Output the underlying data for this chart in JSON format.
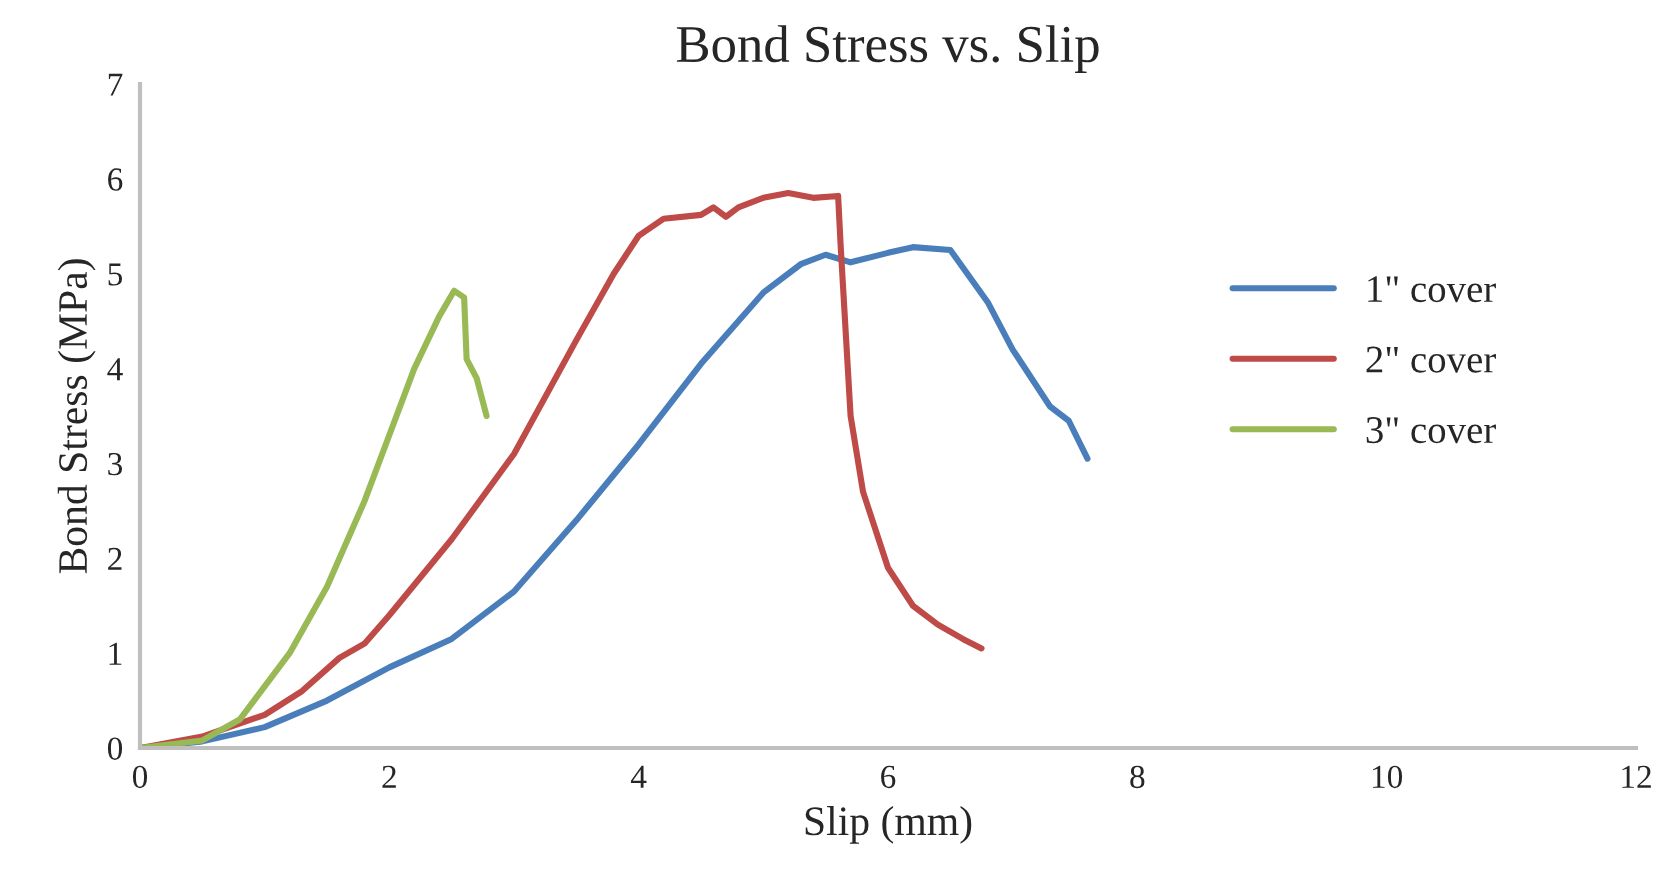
{
  "chart_data": {
    "type": "line",
    "title": "Bond Stress vs. Slip",
    "xlabel": "Slip (mm)",
    "ylabel": "Bond Stress (MPa)",
    "xlim": [
      0,
      12
    ],
    "xticks": [
      0,
      2,
      4,
      6,
      8,
      10,
      12
    ],
    "ylim": [
      0,
      7
    ],
    "yticks": [
      0,
      1,
      2,
      3,
      4,
      5,
      6,
      7
    ],
    "grid": false,
    "legend": "right",
    "marker": "none",
    "line_style": "solid",
    "series": [
      {
        "name": "1\" cover",
        "color": "#4a7ebb",
        "x": [
          0,
          0.5,
          1.0,
          1.5,
          2.0,
          2.5,
          3.0,
          3.5,
          4.0,
          4.5,
          5.0,
          5.3,
          5.5,
          5.7,
          6.0,
          6.2,
          6.5,
          6.8,
          7.0,
          7.3,
          7.45,
          7.6
        ],
        "values": [
          0,
          0.07,
          0.22,
          0.5,
          0.85,
          1.15,
          1.65,
          2.4,
          3.2,
          4.05,
          4.8,
          5.1,
          5.2,
          5.12,
          5.22,
          5.28,
          5.25,
          4.7,
          4.2,
          3.6,
          3.45,
          3.05
        ]
      },
      {
        "name": "2\" cover",
        "color": "#be4b48",
        "x": [
          0,
          0.5,
          1.0,
          1.3,
          1.6,
          1.8,
          2.0,
          2.5,
          3.0,
          3.5,
          3.8,
          4.0,
          4.2,
          4.5,
          4.6,
          4.7,
          4.8,
          5.0,
          5.2,
          5.4,
          5.6,
          5.62,
          5.7,
          5.8,
          6.0,
          6.2,
          6.4,
          6.6,
          6.75
        ],
        "values": [
          0,
          0.12,
          0.35,
          0.6,
          0.95,
          1.1,
          1.4,
          2.2,
          3.1,
          4.3,
          5.0,
          5.4,
          5.58,
          5.62,
          5.7,
          5.6,
          5.7,
          5.8,
          5.85,
          5.8,
          5.82,
          5.3,
          3.5,
          2.7,
          1.9,
          1.5,
          1.3,
          1.15,
          1.05
        ]
      },
      {
        "name": "3\" cover",
        "color": "#98b954",
        "x": [
          0,
          0.5,
          0.8,
          1.0,
          1.2,
          1.5,
          1.8,
          2.0,
          2.2,
          2.4,
          2.52,
          2.6,
          2.62,
          2.7,
          2.78
        ],
        "values": [
          0,
          0.08,
          0.3,
          0.65,
          1.0,
          1.7,
          2.6,
          3.3,
          4.0,
          4.55,
          4.82,
          4.75,
          4.1,
          3.9,
          3.5
        ]
      }
    ]
  }
}
